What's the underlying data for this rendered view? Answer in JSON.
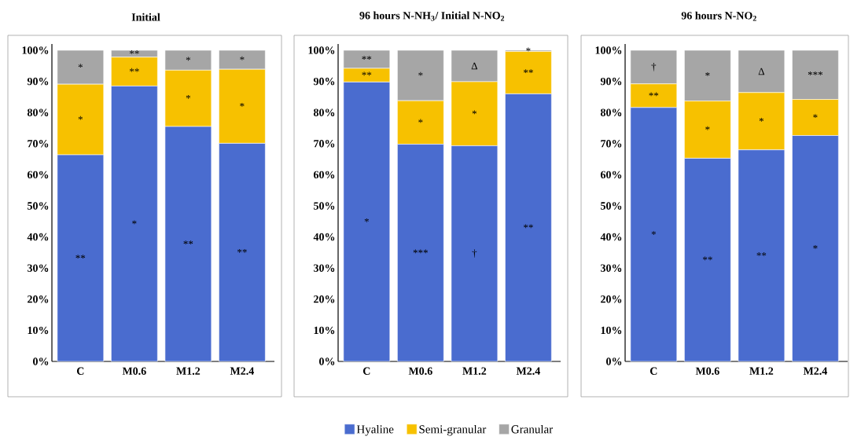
{
  "chart_data": [
    {
      "type": "bar",
      "stacked": true,
      "title": "Initial",
      "categories": [
        "C",
        "M0.6",
        "M1.2",
        "M2.4"
      ],
      "ylim": [
        0,
        102
      ],
      "yticks": [
        {
          "value": 0,
          "label": "0%"
        },
        {
          "value": 10,
          "label": "10%"
        },
        {
          "value": 20,
          "label": "20%"
        },
        {
          "value": 30,
          "label": "30%"
        },
        {
          "value": 40,
          "label": "40%"
        },
        {
          "value": 50,
          "label": "50%"
        },
        {
          "value": 60,
          "label": "60%"
        },
        {
          "value": 70,
          "label": "70%"
        },
        {
          "value": 80,
          "label": "80%"
        },
        {
          "value": 90,
          "label": "90%"
        },
        {
          "value": 100,
          "label": "100%"
        }
      ],
      "series": [
        {
          "color": "#4a6ccf",
          "values": [
            66.4,
            88.5,
            75.5,
            70.1
          ]
        },
        {
          "color": "#f7c100",
          "values": [
            22.7,
            9.3,
            18.1,
            23.8
          ]
        },
        {
          "color": "#a6a6a6",
          "values": [
            10.9,
            2.2,
            6.4,
            6.1
          ]
        }
      ],
      "annotations": [
        "*",
        "*",
        "**",
        "**",
        "**",
        "*",
        "*",
        "*",
        "**",
        "*",
        "*",
        "**"
      ]
    },
    {
      "type": "bar",
      "stacked": true,
      "title": "96 hours N-NH$_{3}$/ Initial N-NO$_{2}$",
      "categories": [
        "C",
        "M0.6",
        "M1.2",
        "M2.4"
      ],
      "ylim": [
        0,
        102
      ],
      "yticks": [
        {
          "value": 0,
          "label": "0%"
        },
        {
          "value": 10,
          "label": "10%"
        },
        {
          "value": 20,
          "label": "20%"
        },
        {
          "value": 30,
          "label": "30%"
        },
        {
          "value": 40,
          "label": "40%"
        },
        {
          "value": 50,
          "label": "50%"
        },
        {
          "value": 60,
          "label": "60%"
        },
        {
          "value": 70,
          "label": "70%"
        },
        {
          "value": 80,
          "label": "80%"
        },
        {
          "value": 90,
          "label": "90%"
        },
        {
          "value": 100,
          "label": "100%"
        }
      ],
      "legend": "bottom",
      "series": [
        {
          "name": "Hyaline",
          "color": "#4a6ccf",
          "values": [
            89.8,
            69.8,
            69.3,
            86.0
          ]
        },
        {
          "name": "Semi-granular",
          "color": "#f7c100",
          "values": [
            4.4,
            14.0,
            20.6,
            13.6
          ]
        },
        {
          "name": "Granular",
          "color": "#a6a6a6",
          "values": [
            5.8,
            16.2,
            10.1,
            0.4
          ]
        }
      ],
      "annotations": [
        "**",
        "**",
        "*",
        "*",
        "*",
        "***",
        "Δ",
        "*",
        "†",
        "*",
        "**",
        "**"
      ]
    },
    {
      "type": "bar",
      "stacked": true,
      "title": "96 hours N-NO$_{2}$",
      "categories": [
        "C",
        "M0.6",
        "M1.2",
        "M2.4"
      ],
      "ylim": [
        0,
        102
      ],
      "yticks": [
        {
          "value": 0,
          "label": "0%"
        },
        {
          "value": 10,
          "label": "10%"
        },
        {
          "value": 20,
          "label": "20%"
        },
        {
          "value": 30,
          "label": "30%"
        },
        {
          "value": 40,
          "label": "40%"
        },
        {
          "value": 50,
          "label": "50%"
        },
        {
          "value": 60,
          "label": "60%"
        },
        {
          "value": 70,
          "label": "70%"
        },
        {
          "value": 80,
          "label": "80%"
        },
        {
          "value": 90,
          "label": "90%"
        },
        {
          "value": 100,
          "label": "100%"
        }
      ],
      "series": [
        {
          "color": "#4a6ccf",
          "values": [
            81.6,
            65.3,
            68.0,
            72.6
          ]
        },
        {
          "color": "#f7c100",
          "values": [
            7.6,
            18.4,
            18.4,
            11.6
          ]
        },
        {
          "color": "#a6a6a6",
          "values": [
            10.8,
            16.3,
            13.6,
            15.8
          ]
        }
      ],
      "annotations": [
        "†",
        "**",
        "*",
        "*",
        "*",
        "**",
        "Δ",
        "*",
        "**",
        "***",
        "*",
        "*"
      ]
    }
  ]
}
